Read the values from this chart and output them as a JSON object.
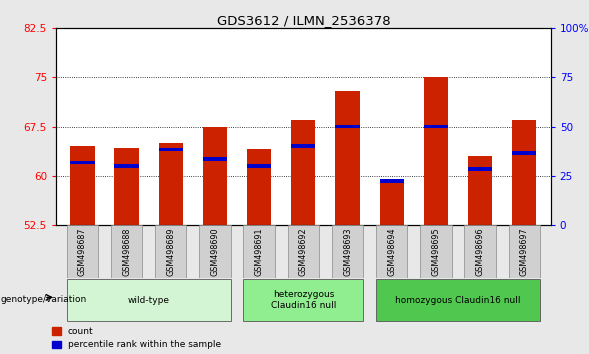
{
  "title": "GDS3612 / ILMN_2536378",
  "samples": [
    "GSM498687",
    "GSM498688",
    "GSM498689",
    "GSM498690",
    "GSM498691",
    "GSM498692",
    "GSM498693",
    "GSM498694",
    "GSM498695",
    "GSM498696",
    "GSM498697"
  ],
  "red_values": [
    64.5,
    64.2,
    65.0,
    67.5,
    64.0,
    68.5,
    73.0,
    59.0,
    75.0,
    63.0,
    68.5
  ],
  "blue_values": [
    62.0,
    61.5,
    64.0,
    62.5,
    61.5,
    64.5,
    67.5,
    59.2,
    67.5,
    61.0,
    63.5
  ],
  "y_min": 52.5,
  "y_max": 82.5,
  "y_ticks_left": [
    52.5,
    60,
    67.5,
    75,
    82.5
  ],
  "right_y_ticks": [
    0,
    25,
    50,
    75,
    100
  ],
  "right_y_tick_labels": [
    "0",
    "25",
    "50",
    "75",
    "100%"
  ],
  "groups": [
    {
      "label": "wild-type",
      "start": 0,
      "end": 3,
      "color": "#d4f5d4"
    },
    {
      "label": "heterozygous\nClaudin16 null",
      "start": 4,
      "end": 6,
      "color": "#90ee90"
    },
    {
      "label": "homozygous Claudin16 null",
      "start": 7,
      "end": 10,
      "color": "#50c850"
    }
  ],
  "bar_color": "#cc2200",
  "blue_color": "#0000cc",
  "bar_width": 0.55,
  "bg_color": "#e8e8e8",
  "plot_bg": "#ffffff",
  "legend_items": [
    "count",
    "percentile rank within the sample"
  ],
  "genotype_label": "genotype/variation"
}
